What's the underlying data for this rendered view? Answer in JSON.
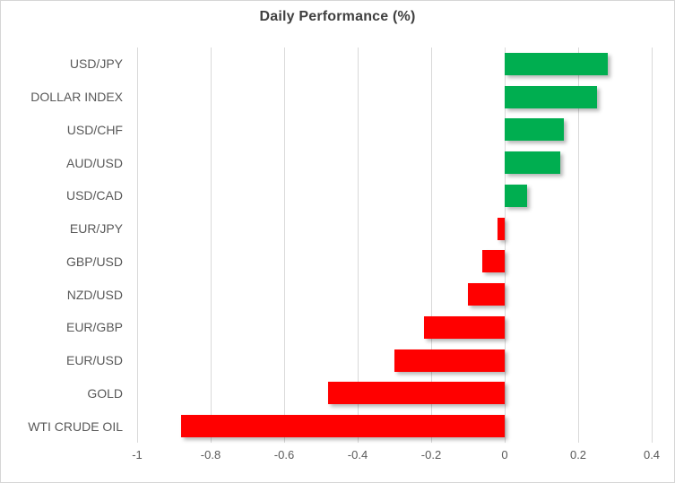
{
  "chart_data": {
    "type": "bar",
    "orientation": "horizontal",
    "title": "Daily Performance (%)",
    "categories": [
      "USD/JPY",
      "DOLLAR INDEX",
      "USD/CHF",
      "AUD/USD",
      "USD/CAD",
      "EUR/JPY",
      "GBP/USD",
      "NZD/USD",
      "EUR/GBP",
      "EUR/USD",
      "GOLD",
      "WTI CRUDE OIL"
    ],
    "values": [
      0.28,
      0.25,
      0.16,
      0.15,
      0.06,
      -0.02,
      -0.06,
      -0.1,
      -0.22,
      -0.3,
      -0.48,
      -0.88
    ],
    "xlabel": "",
    "ylabel": "",
    "xlim": [
      -1,
      0.4
    ],
    "xticks": [
      -1,
      -0.8,
      -0.6,
      -0.4,
      -0.2,
      0,
      0.2,
      0.4
    ],
    "xtick_labels": [
      "-1",
      "-0.8",
      "-0.6",
      "-0.4",
      "-0.2",
      "0",
      "0.2",
      "0.4"
    ],
    "grid": true,
    "legend": false,
    "data_labels": false,
    "colors": {
      "positive": "#00ae50",
      "negative": "#ff0000",
      "gridline": "#d9d9d9",
      "border": "#d6d6d6",
      "title_text": "#3f3f3f",
      "label_text": "#595959",
      "background": "#ffffff"
    }
  }
}
